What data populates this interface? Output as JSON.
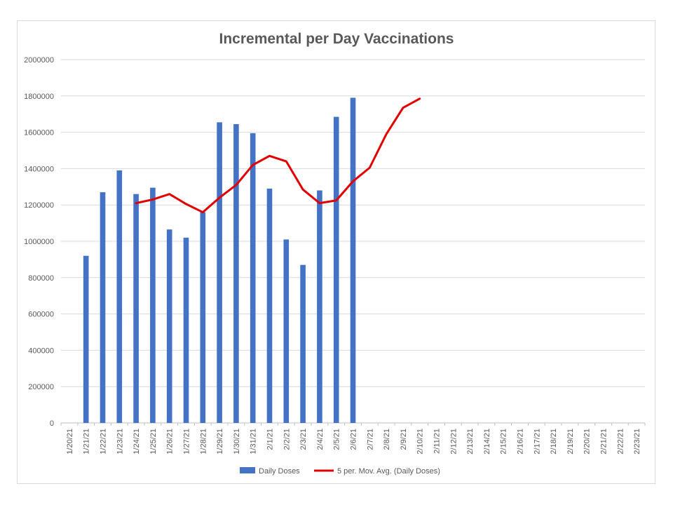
{
  "chart_data": {
    "type": "bar",
    "title": "Incremental per Day Vaccinations",
    "xlabel": "",
    "ylabel": "",
    "ylim": [
      0,
      2000000
    ],
    "yticks": [
      0,
      200000,
      400000,
      600000,
      800000,
      1000000,
      1200000,
      1400000,
      1600000,
      1800000,
      2000000
    ],
    "categories": [
      "1/20/21",
      "1/21/21",
      "1/22/21",
      "1/23/21",
      "1/24/21",
      "1/25/21",
      "1/26/21",
      "1/27/21",
      "1/28/21",
      "1/29/21",
      "1/30/21",
      "1/31/21",
      "2/1/21",
      "2/2/21",
      "2/3/21",
      "2/4/21",
      "2/5/21",
      "2/6/21",
      "2/7/21",
      "2/8/21",
      "2/9/21",
      "2/10/21",
      "2/11/21",
      "2/12/21",
      "2/13/21",
      "2/14/21",
      "2/15/21",
      "2/16/21",
      "2/17/21",
      "2/18/21",
      "2/19/21",
      "2/20/21",
      "2/21/21",
      "2/22/21",
      "2/23/21"
    ],
    "grid": true,
    "legend_position": "bottom",
    "series": [
      {
        "name": "Daily Doses",
        "type": "bar",
        "color": "#4472c4",
        "values": [
          null,
          920000,
          1270000,
          1390000,
          1260000,
          1295000,
          1065000,
          1020000,
          1160000,
          1655000,
          1645000,
          1595000,
          1290000,
          1010000,
          870000,
          1280000,
          1685000,
          1790000,
          null,
          null,
          null,
          null,
          null,
          null,
          null,
          null,
          null,
          null,
          null,
          null,
          null,
          null,
          null,
          null,
          null
        ]
      },
      {
        "name": "5 per. Mov. Avg. (Daily Doses)",
        "type": "line",
        "color": "#e00000",
        "values": [
          null,
          null,
          null,
          null,
          1210000,
          1230000,
          1260000,
          1205000,
          1160000,
          1240000,
          1310000,
          1420000,
          1470000,
          1440000,
          1285000,
          1210000,
          1225000,
          1330000,
          1405000,
          1590000,
          1735000,
          1785000,
          null,
          null,
          null,
          null,
          null,
          null,
          null,
          null,
          null,
          null,
          null,
          null,
          null
        ]
      }
    ]
  }
}
